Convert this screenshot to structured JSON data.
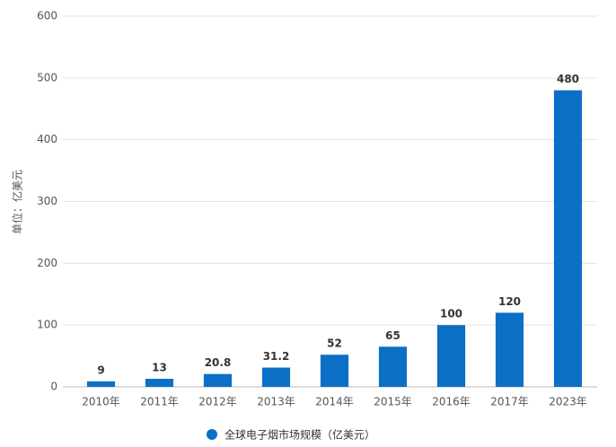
{
  "chart_data": {
    "type": "bar",
    "y_label": "单位：亿美元",
    "categories": [
      "2010年",
      "2011年",
      "2012年",
      "2013年",
      "2014年",
      "2015年",
      "2016年",
      "2017年",
      "2023年"
    ],
    "series": [
      {
        "name": "全球电子烟市场规模（亿美元）",
        "color": "#0b6fc6",
        "values": [
          9,
          13,
          20.8,
          31.2,
          52,
          65,
          100,
          120,
          480
        ]
      }
    ],
    "ylim": [
      0,
      600
    ],
    "yticks": [
      0,
      100,
      200,
      300,
      400,
      500,
      600
    ],
    "grid": true,
    "legend": "bottom"
  }
}
